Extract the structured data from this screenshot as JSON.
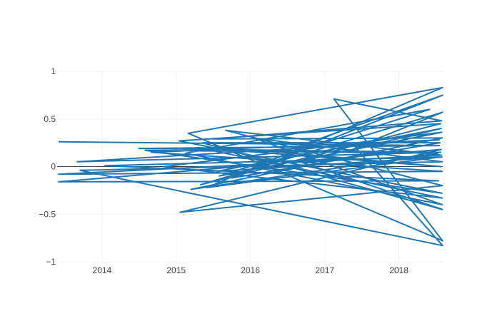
{
  "chart_data": {
    "type": "line",
    "title": "",
    "xlabel": "",
    "ylabel": "",
    "grid": true,
    "legend": "none",
    "xlim": [
      "2013-05-25",
      "2018-08-05"
    ],
    "ylim": [
      -1,
      1
    ],
    "xticks": [
      {
        "value": "2014-01-01",
        "label": "2014"
      },
      {
        "value": "2015-01-01",
        "label": "2015"
      },
      {
        "value": "2016-01-01",
        "label": "2016"
      },
      {
        "value": "2017-01-01",
        "label": "2017"
      },
      {
        "value": "2018-01-01",
        "label": "2018"
      }
    ],
    "yticks": [
      {
        "value": 1,
        "label": "1"
      },
      {
        "value": 0.5,
        "label": "0.5"
      },
      {
        "value": 0,
        "label": "0"
      },
      {
        "value": -0.5,
        "label": "−0.5"
      },
      {
        "value": -1,
        "label": "−1"
      }
    ],
    "series": [
      {
        "color": "#1f77b4",
        "points": [
          {
            "x": "2013-06-01",
            "y": 0.26
          },
          {
            "x": "2018-07-20",
            "y": 0.22
          },
          {
            "x": "2014-07-01",
            "y": 0.19
          },
          {
            "x": "2018-07-25",
            "y": 0.15
          },
          {
            "x": "2013-09-01",
            "y": 0.05
          },
          {
            "x": "2018-07-18",
            "y": 0.28
          },
          {
            "x": "2014-09-01",
            "y": 0.15
          },
          {
            "x": "2018-08-02",
            "y": -0.05
          },
          {
            "x": "2013-06-01",
            "y": -0.08
          },
          {
            "x": "2018-07-30",
            "y": 0.12
          },
          {
            "x": "2015-09-01",
            "y": 0.38
          },
          {
            "x": "2018-08-03",
            "y": -0.2
          },
          {
            "x": "2015-01-20",
            "y": -0.48
          },
          {
            "x": "2018-07-28",
            "y": 0.18
          },
          {
            "x": "2013-06-01",
            "y": -0.16
          },
          {
            "x": "2018-07-15",
            "y": -0.15
          },
          {
            "x": "2014-01-15",
            "y": 0.01
          },
          {
            "x": "2018-07-20",
            "y": 0.1
          },
          {
            "x": "2015-06-01",
            "y": -0.22
          },
          {
            "x": "2018-08-04",
            "y": 0.83
          },
          {
            "x": "2015-03-01",
            "y": 0.35
          },
          {
            "x": "2018-08-04",
            "y": -0.78
          },
          {
            "x": "2017-02-15",
            "y": 0.71
          },
          {
            "x": "2018-07-30",
            "y": 0.48
          },
          {
            "x": "2015-07-01",
            "y": 0.29
          },
          {
            "x": "2018-08-02",
            "y": 0.3
          },
          {
            "x": "2015-03-15",
            "y": -0.24
          },
          {
            "x": "2018-07-10",
            "y": 0.14
          },
          {
            "x": "2014-08-01",
            "y": 0.17
          },
          {
            "x": "2018-08-01",
            "y": -0.28
          },
          {
            "x": "2015-01-15",
            "y": 0.27
          },
          {
            "x": "2018-07-25",
            "y": 0.45
          },
          {
            "x": "2015-05-01",
            "y": -0.19
          },
          {
            "x": "2018-08-03",
            "y": 0.57
          },
          {
            "x": "2017-06-01",
            "y": 0.2
          },
          {
            "x": "2018-08-04",
            "y": -0.83
          },
          {
            "x": "2013-09-15",
            "y": -0.04
          },
          {
            "x": "2018-08-02",
            "y": 0.05
          },
          {
            "x": "2016-01-15",
            "y": 0.3
          },
          {
            "x": "2018-08-03",
            "y": -0.4
          },
          {
            "x": "2015-02-15",
            "y": 0.14
          },
          {
            "x": "2018-06-01",
            "y": 0.6
          },
          {
            "x": "2015-08-01",
            "y": -0.1
          },
          {
            "x": "2018-07-31",
            "y": 0.36
          },
          {
            "x": "2014-11-01",
            "y": 0.0
          },
          {
            "x": "2018-08-02",
            "y": -0.33
          },
          {
            "x": "2015-04-15",
            "y": 0.2
          },
          {
            "x": "2018-07-26",
            "y": 0.0
          },
          {
            "x": "2016-06-01",
            "y": 0.15
          },
          {
            "x": "2018-08-04",
            "y": 0.75
          },
          {
            "x": "2015-10-01",
            "y": -0.12
          },
          {
            "x": "2018-07-22",
            "y": 0.25
          },
          {
            "x": "2015-05-10",
            "y": 0.25
          },
          {
            "x": "2018-08-03",
            "y": -0.45
          },
          {
            "x": "2016-09-01",
            "y": 0.05
          },
          {
            "x": "2018-07-28",
            "y": 0.4
          },
          {
            "x": "2015-07-20",
            "y": -0.05
          },
          {
            "x": "2018-08-04",
            "y": 0.1
          }
        ]
      }
    ]
  }
}
